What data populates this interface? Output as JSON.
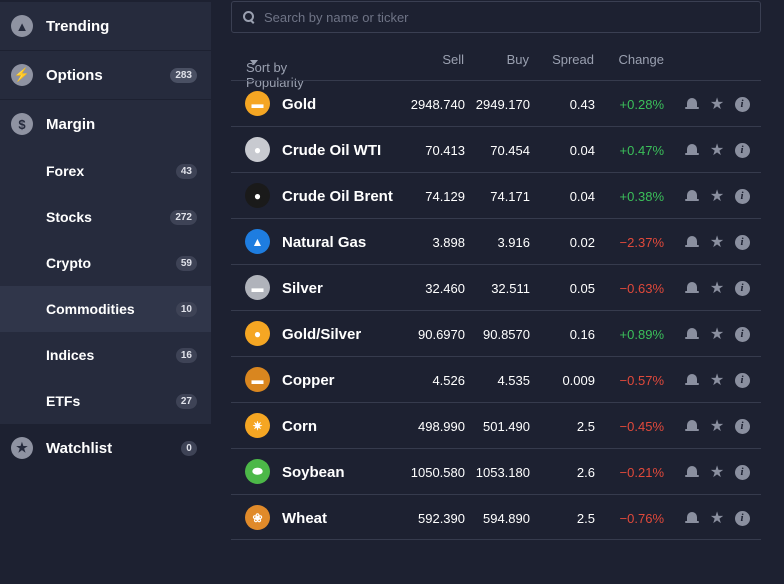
{
  "sidebar": {
    "trending": {
      "label": "Trending"
    },
    "options": {
      "label": "Options",
      "count": "283"
    },
    "margin": {
      "label": "Margin"
    },
    "sub_items": [
      {
        "label": "Forex",
        "count": "43"
      },
      {
        "label": "Stocks",
        "count": "272"
      },
      {
        "label": "Crypto",
        "count": "59"
      },
      {
        "label": "Commodities",
        "count": "10"
      },
      {
        "label": "Indices",
        "count": "16"
      },
      {
        "label": "ETFs",
        "count": "27"
      }
    ],
    "watchlist": {
      "label": "Watchlist",
      "count": "0"
    }
  },
  "search": {
    "placeholder": "Search by name or ticker"
  },
  "table": {
    "headers": {
      "sort": "Sort by Popularity",
      "sell": "Sell",
      "buy": "Buy",
      "spread": "Spread",
      "change": "Change"
    },
    "rows": [
      {
        "name": "Gold",
        "sell": "2948.740",
        "buy": "2949.170",
        "spread": "0.43",
        "change": "+0.28%",
        "icon": "gold-bars-icon",
        "color": "#f5a623",
        "trend": "pos"
      },
      {
        "name": "Crude Oil WTI",
        "sell": "70.413",
        "buy": "70.454",
        "spread": "0.04",
        "change": "+0.47%",
        "icon": "oil-drop-icon",
        "color": "#c8cad0",
        "trend": "pos"
      },
      {
        "name": "Crude Oil Brent",
        "sell": "74.129",
        "buy": "74.171",
        "spread": "0.04",
        "change": "+0.38%",
        "icon": "oil-drop-icon",
        "color": "#1a1a1a",
        "trend": "pos"
      },
      {
        "name": "Natural Gas",
        "sell": "3.898",
        "buy": "3.916",
        "spread": "0.02",
        "change": "−2.37%",
        "icon": "flame-icon",
        "color": "#1e7de0",
        "trend": "neg"
      },
      {
        "name": "Silver",
        "sell": "32.460",
        "buy": "32.511",
        "spread": "0.05",
        "change": "−0.63%",
        "icon": "silver-bars-icon",
        "color": "#b0b3bb",
        "trend": "neg"
      },
      {
        "name": "Gold/Silver",
        "sell": "90.6970",
        "buy": "90.8570",
        "spread": "0.16",
        "change": "+0.89%",
        "icon": "gold-silver-icon",
        "color": "#f5a623",
        "trend": "pos"
      },
      {
        "name": "Copper",
        "sell": "4.526",
        "buy": "4.535",
        "spread": "0.009",
        "change": "−0.57%",
        "icon": "copper-bar-icon",
        "color": "#d9861f",
        "trend": "neg"
      },
      {
        "name": "Corn",
        "sell": "498.990",
        "buy": "501.490",
        "spread": "2.5",
        "change": "−0.45%",
        "icon": "corn-icon",
        "color": "#f5a623",
        "trend": "neg"
      },
      {
        "name": "Soybean",
        "sell": "1050.580",
        "buy": "1053.180",
        "spread": "2.6",
        "change": "−0.21%",
        "icon": "soybean-icon",
        "color": "#4cb848",
        "trend": "neg"
      },
      {
        "name": "Wheat",
        "sell": "592.390",
        "buy": "594.890",
        "spread": "2.5",
        "change": "−0.76%",
        "icon": "wheat-icon",
        "color": "#e08a2a",
        "trend": "neg"
      }
    ]
  },
  "colors": {
    "positive": "#3bbf5a",
    "negative": "#e0493b",
    "background": "#1d2131"
  }
}
